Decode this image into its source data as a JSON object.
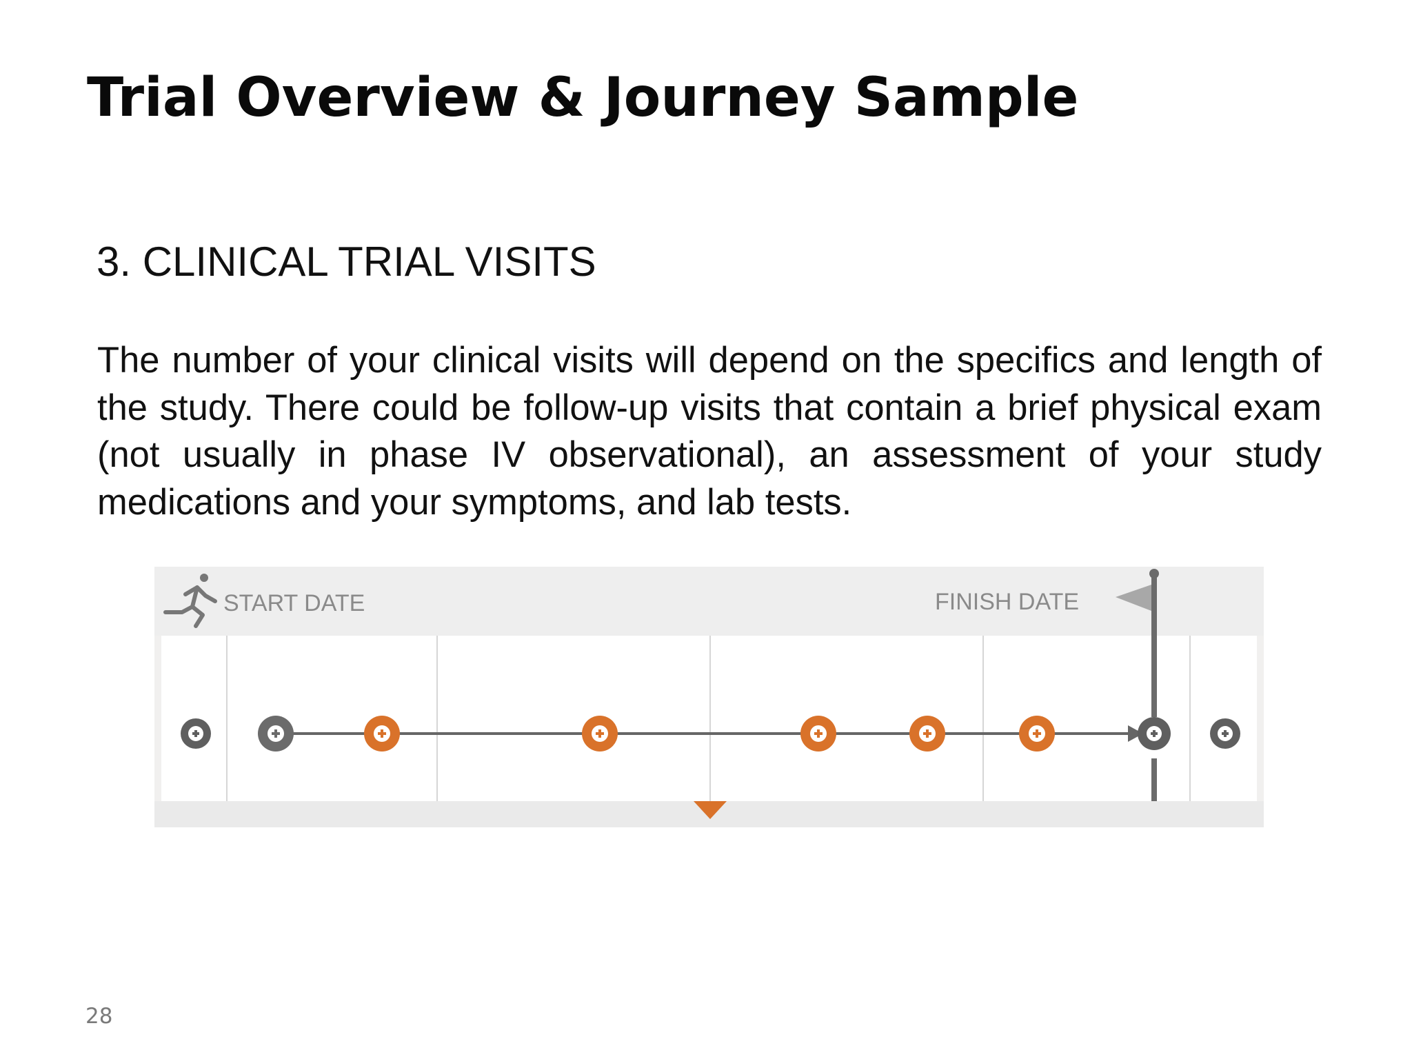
{
  "slide": {
    "title": "Trial Overview & Journey Sample",
    "section_heading": "3.  CLINICAL TRIAL VISITS",
    "body": "The number of your clinical visits will depend on the specifics and length of the study. There could be follow-up visits that contain a brief physical exam (not usually in phase IV observational), an assessment of your study medications and your symptoms, and lab tests.",
    "page_number": "28"
  },
  "timeline": {
    "start_label": "START DATE",
    "finish_label": "FINISH DATE",
    "start_icon": "running-person-icon",
    "finish_icon": "flag-icon",
    "current_marker_icon": "triangle-down-icon",
    "visit_icon": "plus-icon",
    "visits": [
      {
        "status": "outside",
        "color": "gray"
      },
      {
        "status": "start",
        "color": "gray"
      },
      {
        "status": "visit",
        "color": "orange"
      },
      {
        "status": "visit",
        "color": "orange"
      },
      {
        "status": "visit",
        "color": "orange"
      },
      {
        "status": "visit",
        "color": "orange"
      },
      {
        "status": "visit",
        "color": "orange"
      },
      {
        "status": "finish",
        "color": "gray"
      },
      {
        "status": "outside",
        "color": "gray"
      }
    ],
    "colors": {
      "orange": "#d9722a",
      "gray": "#6b6b6b",
      "line": "#666666",
      "label": "#8a8a8a",
      "header_bg": "#eeeeee",
      "panel_bg": "#ffffff"
    }
  }
}
